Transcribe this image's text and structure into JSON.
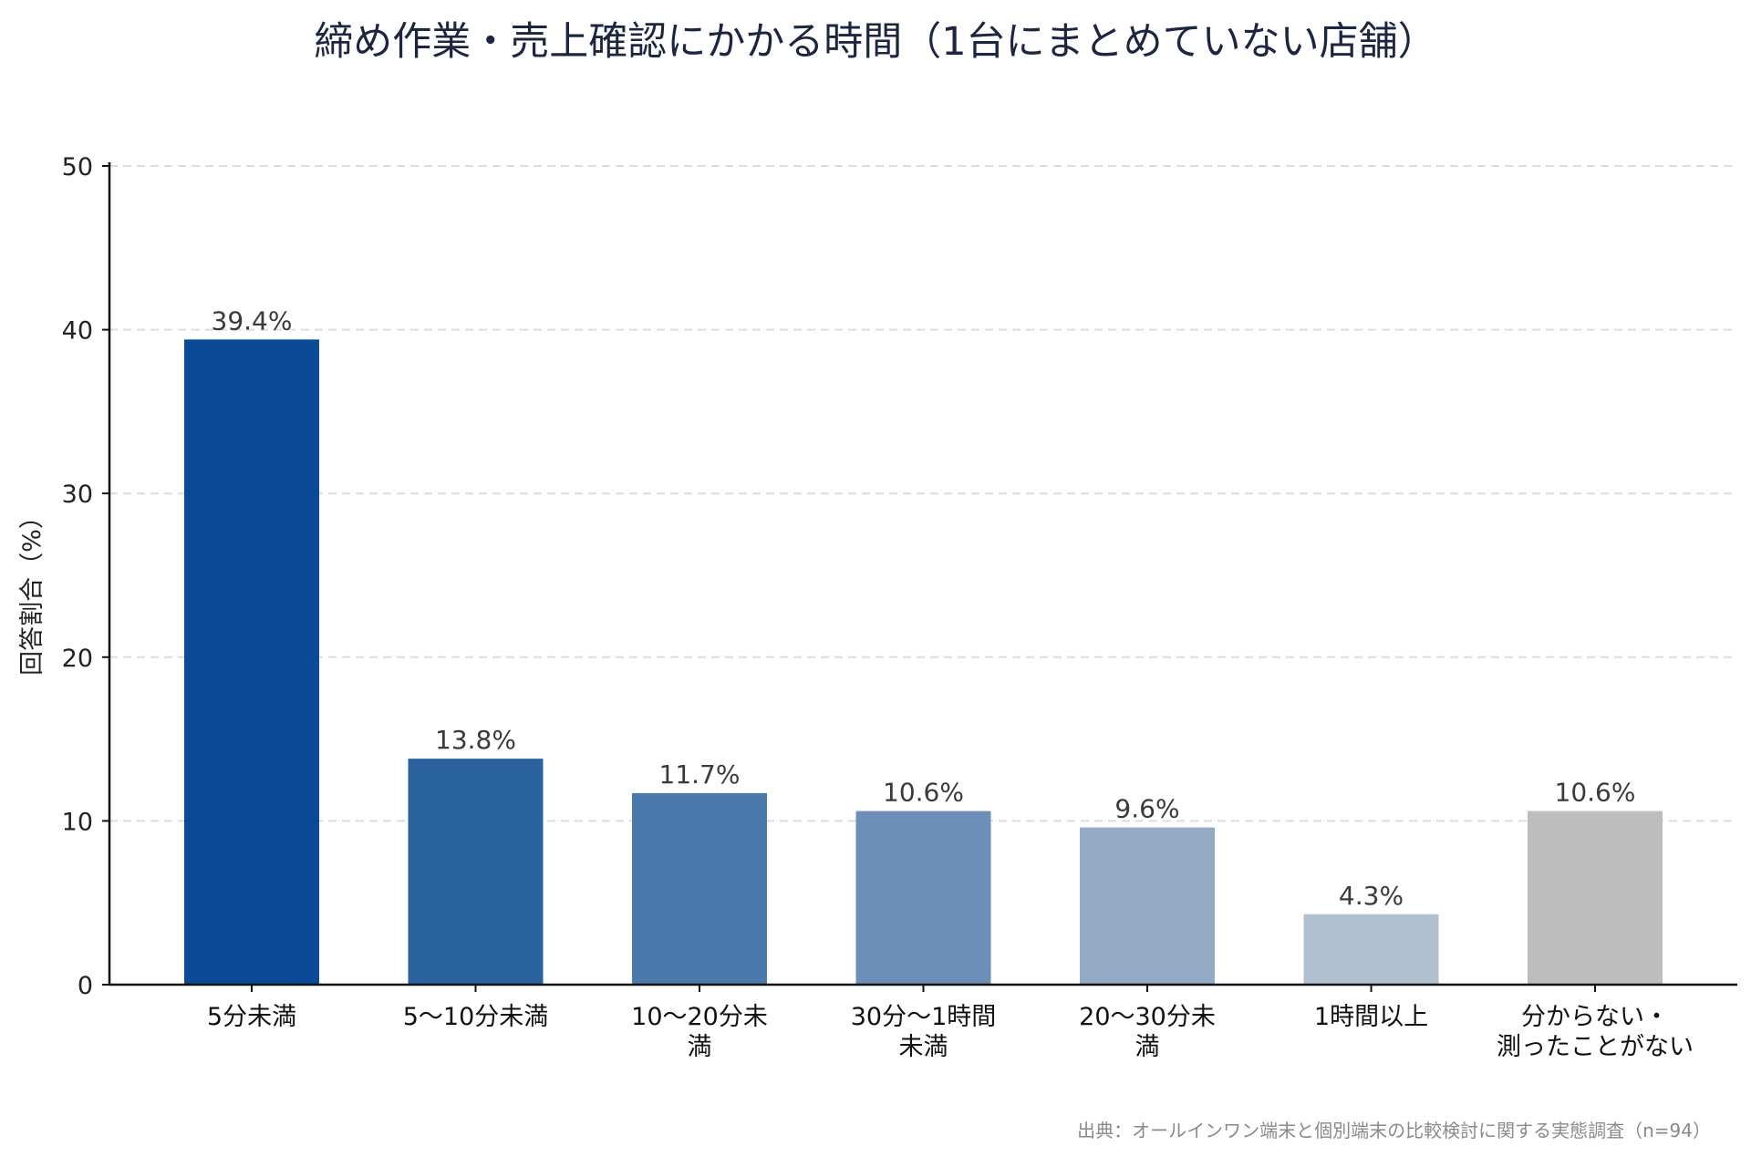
{
  "chart_data": {
    "type": "bar",
    "title": "締め作業・売上確認にかかる時間（1台にまとめていない店舗）",
    "ylabel": "回答割合（%）",
    "xlabel": "",
    "ylim": [
      0,
      50
    ],
    "yticks": [
      0,
      10,
      20,
      30,
      40,
      50
    ],
    "grid": true,
    "categories": [
      [
        "5分未満"
      ],
      [
        "5〜10分未満"
      ],
      [
        "10〜20分未",
        "満"
      ],
      [
        "30分〜1時間",
        "未満"
      ],
      [
        "20〜30分未",
        "満"
      ],
      [
        "1時間以上"
      ],
      [
        "分からない・",
        "測ったことがない"
      ]
    ],
    "values": [
      39.4,
      13.8,
      11.7,
      10.6,
      9.6,
      4.3,
      10.6
    ],
    "value_labels": [
      "39.4%",
      "13.8%",
      "11.7%",
      "10.6%",
      "9.6%",
      "4.3%",
      "10.6%"
    ],
    "colors": [
      "#0a4a97",
      "#2a62a0",
      "#4a7aac",
      "#6d8fb7",
      "#93aac4",
      "#b0c0d0",
      "#bdbdbd"
    ],
    "source": "出典：オールインワン端末と個別端末の比較検討に関する実態調査（n=94）"
  }
}
